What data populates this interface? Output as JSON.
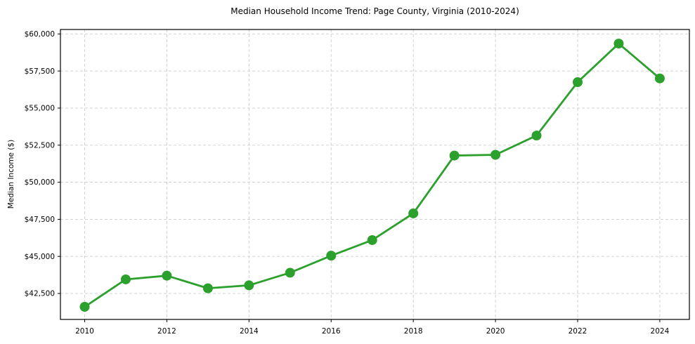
{
  "title": "Median Household Income Trend: Page County, Virginia (2010-2024)",
  "chart_data": {
    "type": "line",
    "title": "Median Household Income Trend: Page County, Virginia (2010-2024)",
    "xlabel": "",
    "ylabel": "Median Income ($)",
    "x": [
      2010,
      2011,
      2012,
      2013,
      2014,
      2015,
      2016,
      2017,
      2018,
      2019,
      2020,
      2021,
      2022,
      2023,
      2024
    ],
    "values": [
      41600,
      43450,
      43700,
      42850,
      43050,
      43900,
      45050,
      46100,
      47900,
      51800,
      51850,
      53150,
      56750,
      59350,
      57000
    ],
    "series_name": "Median Household Income",
    "xlim": [
      2009.41,
      2024.72
    ],
    "ylim": [
      40750,
      60300
    ],
    "x_tick_values": [
      2010,
      2012,
      2014,
      2016,
      2018,
      2020,
      2022,
      2024
    ],
    "x_tick_labels": [
      "2010",
      "2012",
      "2014",
      "2016",
      "2018",
      "2020",
      "2022",
      "2024"
    ],
    "y_tick_values": [
      42500,
      45000,
      47500,
      50000,
      52500,
      55000,
      57500,
      60000
    ],
    "y_tick_labels": [
      "$42,500",
      "$45,000",
      "$47,500",
      "$50,000",
      "$52,500",
      "$55,000",
      "$57,500",
      "$60,000"
    ],
    "grid": true,
    "legend": "none",
    "line_color": "#2ca02c",
    "marker": "circle",
    "marker_color": "#2ca02c",
    "grid_color": "#cccccc",
    "spine_color": "#000000",
    "background": "#ffffff"
  }
}
